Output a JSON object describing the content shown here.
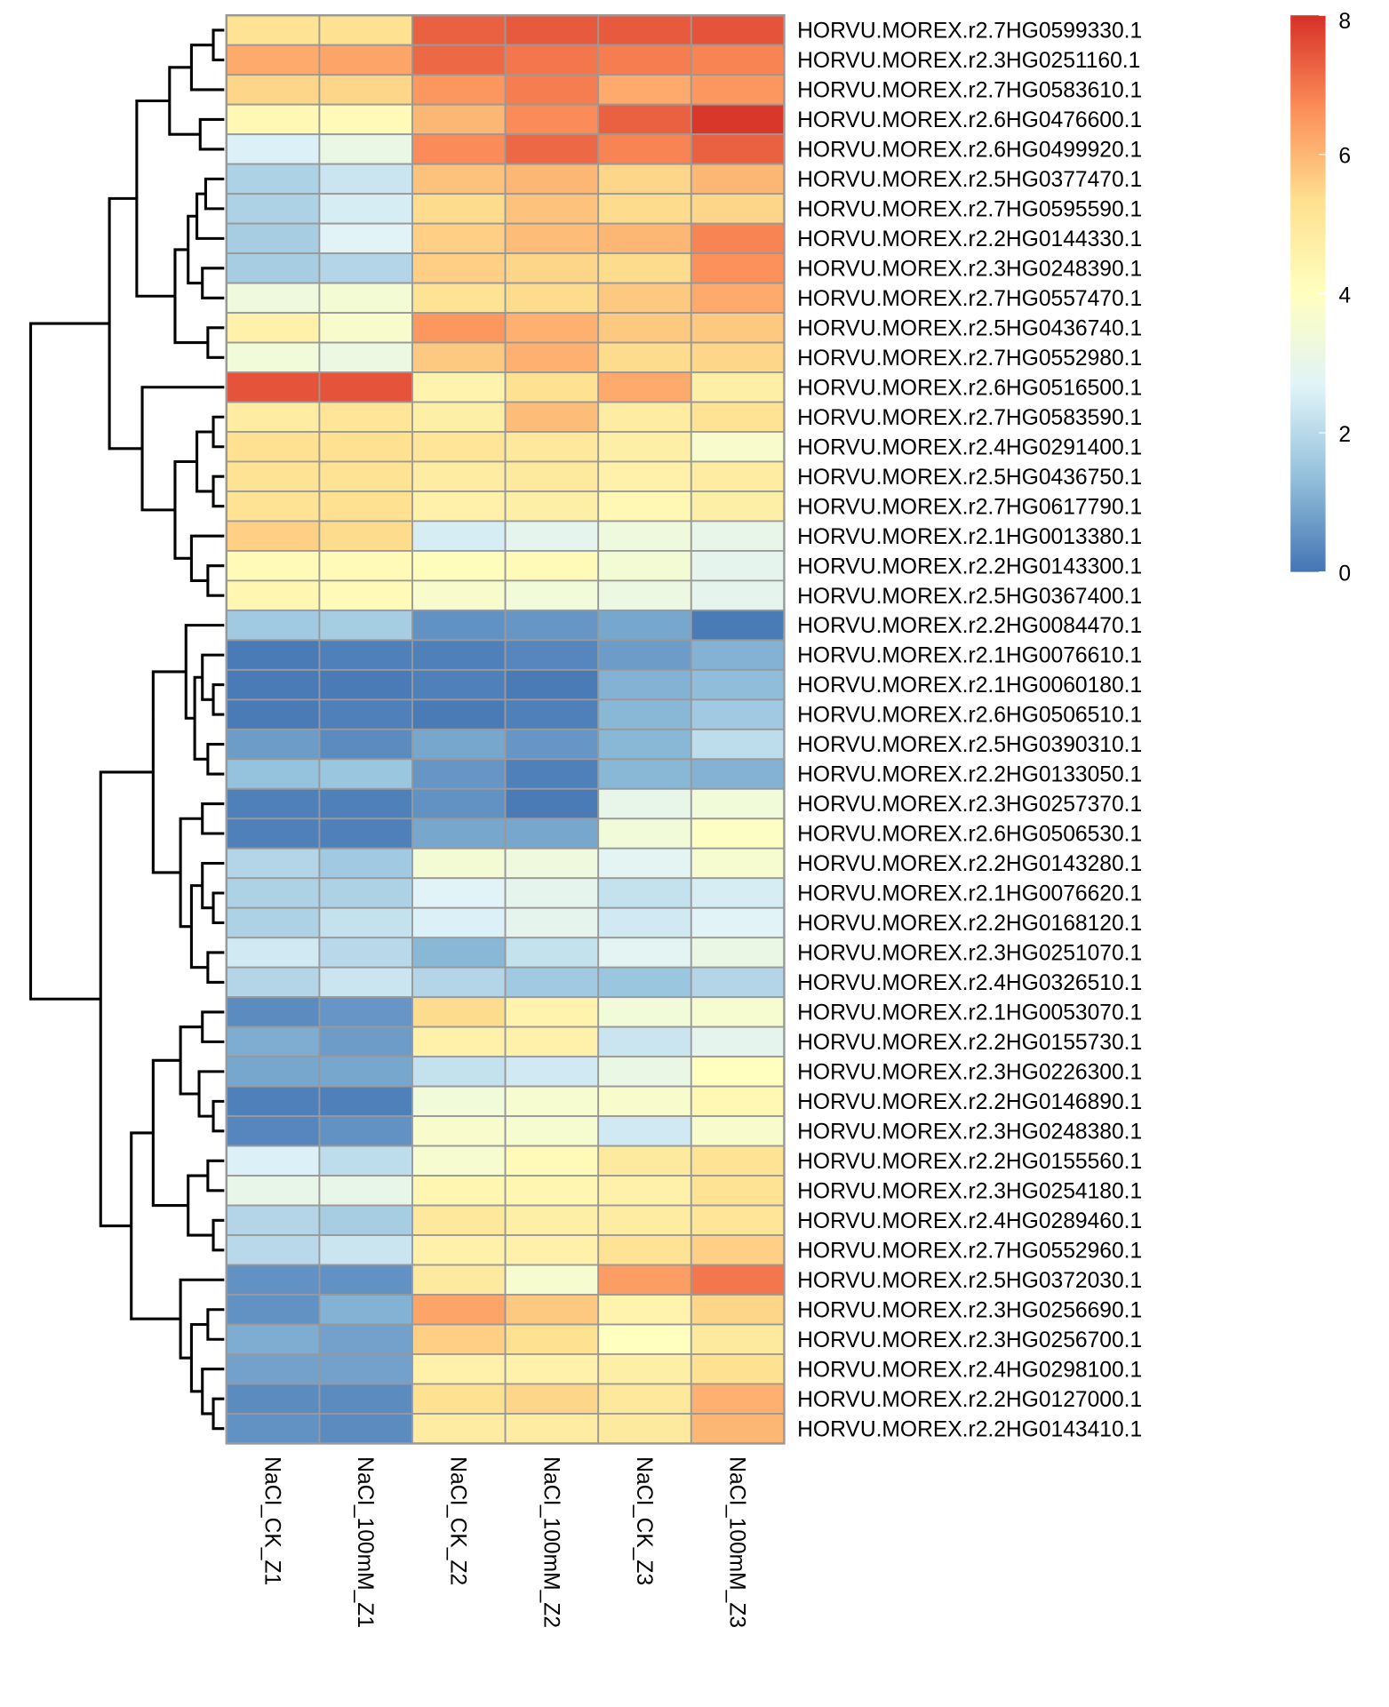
{
  "chart_data": {
    "type": "heatmap",
    "rows": [
      "HORVU.MOREX.r2.7HG0599330.1",
      "HORVU.MOREX.r2.3HG0251160.1",
      "HORVU.MOREX.r2.7HG0583610.1",
      "HORVU.MOREX.r2.6HG0476600.1",
      "HORVU.MOREX.r2.6HG0499920.1",
      "HORVU.MOREX.r2.5HG0377470.1",
      "HORVU.MOREX.r2.7HG0595590.1",
      "HORVU.MOREX.r2.2HG0144330.1",
      "HORVU.MOREX.r2.3HG0248390.1",
      "HORVU.MOREX.r2.7HG0557470.1",
      "HORVU.MOREX.r2.5HG0436740.1",
      "HORVU.MOREX.r2.7HG0552980.1",
      "HORVU.MOREX.r2.6HG0516500.1",
      "HORVU.MOREX.r2.7HG0583590.1",
      "HORVU.MOREX.r2.4HG0291400.1",
      "HORVU.MOREX.r2.5HG0436750.1",
      "HORVU.MOREX.r2.7HG0617790.1",
      "HORVU.MOREX.r2.1HG0013380.1",
      "HORVU.MOREX.r2.2HG0143300.1",
      "HORVU.MOREX.r2.5HG0367400.1",
      "HORVU.MOREX.r2.2HG0084470.1",
      "HORVU.MOREX.r2.1HG0076610.1",
      "HORVU.MOREX.r2.1HG0060180.1",
      "HORVU.MOREX.r2.6HG0506510.1",
      "HORVU.MOREX.r2.5HG0390310.1",
      "HORVU.MOREX.r2.2HG0133050.1",
      "HORVU.MOREX.r2.3HG0257370.1",
      "HORVU.MOREX.r2.6HG0506530.1",
      "HORVU.MOREX.r2.2HG0143280.1",
      "HORVU.MOREX.r2.1HG0076620.1",
      "HORVU.MOREX.r2.2HG0168120.1",
      "HORVU.MOREX.r2.3HG0251070.1",
      "HORVU.MOREX.r2.4HG0326510.1",
      "HORVU.MOREX.r2.1HG0053070.1",
      "HORVU.MOREX.r2.2HG0155730.1",
      "HORVU.MOREX.r2.3HG0226300.1",
      "HORVU.MOREX.r2.2HG0146890.1",
      "HORVU.MOREX.r2.3HG0248380.1",
      "HORVU.MOREX.r2.2HG0155560.1",
      "HORVU.MOREX.r2.3HG0254180.1",
      "HORVU.MOREX.r2.4HG0289460.1",
      "HORVU.MOREX.r2.7HG0552960.1",
      "HORVU.MOREX.r2.5HG0372030.1",
      "HORVU.MOREX.r2.3HG0256690.1",
      "HORVU.MOREX.r2.3HG0256700.1",
      "HORVU.MOREX.r2.4HG0298100.1",
      "HORVU.MOREX.r2.2HG0127000.1",
      "HORVU.MOREX.r2.2HG0143410.1"
    ],
    "columns": [
      "NaCl_CK_Z1",
      "NaCl_100mM_Z1",
      "NaCl_CK_Z2",
      "NaCl_100mM_Z2",
      "NaCl_CK_Z3",
      "NaCl_100mM_Z3"
    ],
    "values": [
      [
        5.2,
        5.3,
        7.3,
        7.4,
        7.4,
        7.5
      ],
      [
        6.2,
        6.3,
        7.2,
        7.0,
        6.9,
        6.8
      ],
      [
        5.5,
        5.5,
        6.5,
        6.9,
        6.2,
        6.5
      ],
      [
        4.3,
        4.2,
        6.0,
        6.7,
        7.3,
        7.9
      ],
      [
        2.6,
        3.1,
        6.7,
        7.2,
        6.8,
        7.3
      ],
      [
        1.8,
        2.3,
        5.8,
        6.0,
        5.5,
        6.0
      ],
      [
        1.8,
        2.5,
        5.4,
        5.8,
        5.4,
        5.5
      ],
      [
        1.7,
        2.7,
        5.6,
        5.9,
        6.0,
        6.8
      ],
      [
        1.7,
        1.9,
        5.6,
        5.5,
        5.4,
        6.6
      ],
      [
        3.3,
        3.5,
        5.2,
        5.4,
        5.7,
        6.2
      ],
      [
        4.6,
        3.7,
        6.5,
        6.1,
        5.7,
        5.7
      ],
      [
        3.4,
        3.2,
        5.7,
        6.1,
        5.4,
        5.5
      ],
      [
        7.5,
        7.5,
        4.5,
        5.3,
        6.2,
        4.7
      ],
      [
        4.8,
        5.1,
        4.7,
        5.9,
        4.8,
        5.2
      ],
      [
        5.3,
        5.3,
        5.1,
        5.0,
        4.7,
        3.7
      ],
      [
        5.2,
        5.2,
        4.8,
        4.9,
        4.6,
        4.8
      ],
      [
        5.2,
        5.3,
        4.6,
        4.7,
        4.3,
        4.7
      ],
      [
        5.6,
        5.4,
        2.5,
        2.9,
        3.3,
        3.0
      ],
      [
        4.2,
        4.2,
        4.1,
        4.2,
        3.5,
        2.9
      ],
      [
        4.4,
        4.2,
        3.7,
        3.4,
        3.2,
        2.9
      ],
      [
        1.6,
        1.7,
        0.5,
        0.6,
        0.9,
        0.1
      ],
      [
        0.1,
        0.2,
        0.2,
        0.3,
        0.7,
        1.1
      ],
      [
        0.1,
        0.1,
        0.2,
        0.1,
        1.1,
        1.3
      ],
      [
        0.1,
        0.2,
        0.1,
        0.2,
        1.2,
        1.6
      ],
      [
        0.7,
        0.4,
        0.9,
        0.6,
        1.2,
        2.1
      ],
      [
        1.4,
        1.5,
        0.6,
        0.2,
        1.2,
        1.1
      ],
      [
        0.2,
        0.2,
        0.5,
        0.1,
        3.0,
        3.4
      ],
      [
        0.2,
        0.2,
        0.9,
        0.9,
        3.4,
        3.9
      ],
      [
        1.9,
        1.6,
        3.5,
        3.3,
        2.8,
        3.6
      ],
      [
        1.8,
        1.8,
        2.7,
        2.9,
        2.2,
        2.5
      ],
      [
        1.8,
        2.2,
        2.6,
        2.9,
        2.4,
        2.7
      ],
      [
        2.4,
        2.0,
        1.2,
        2.2,
        2.8,
        3.1
      ],
      [
        1.9,
        2.3,
        1.9,
        1.6,
        1.5,
        1.9
      ],
      [
        0.4,
        0.6,
        5.4,
        4.5,
        3.4,
        3.6
      ],
      [
        1.0,
        0.7,
        4.6,
        4.6,
        2.3,
        2.9
      ],
      [
        0.9,
        0.9,
        2.2,
        2.4,
        3.1,
        4.0
      ],
      [
        0.2,
        0.2,
        3.4,
        3.6,
        3.7,
        4.3
      ],
      [
        0.3,
        0.5,
        3.7,
        3.6,
        2.4,
        3.7
      ],
      [
        2.6,
        2.1,
        3.6,
        4.2,
        4.9,
        5.2
      ],
      [
        3.0,
        3.0,
        4.4,
        4.4,
        4.6,
        5.2
      ],
      [
        1.9,
        1.7,
        5.0,
        4.7,
        4.8,
        5.1
      ],
      [
        2.0,
        2.3,
        4.6,
        4.6,
        5.2,
        5.6
      ],
      [
        0.5,
        0.5,
        4.9,
        3.6,
        6.4,
        7.0
      ],
      [
        0.5,
        1.1,
        6.3,
        5.7,
        4.5,
        5.5
      ],
      [
        1.0,
        0.8,
        5.6,
        5.3,
        4.0,
        4.9
      ],
      [
        0.8,
        0.8,
        4.6,
        4.6,
        4.7,
        5.3
      ],
      [
        0.4,
        0.4,
        5.3,
        5.5,
        5.0,
        6.1
      ],
      [
        0.5,
        0.4,
        4.8,
        4.8,
        4.9,
        6.0
      ]
    ],
    "colors": [
      "#4575B4",
      "#91BFDB",
      "#E0F3F8",
      "#FFFFBF",
      "#FEE090",
      "#FC8D59",
      "#D73027"
    ],
    "zlim": [
      0,
      8
    ],
    "zticks": [
      0,
      2,
      4,
      6,
      8
    ]
  }
}
